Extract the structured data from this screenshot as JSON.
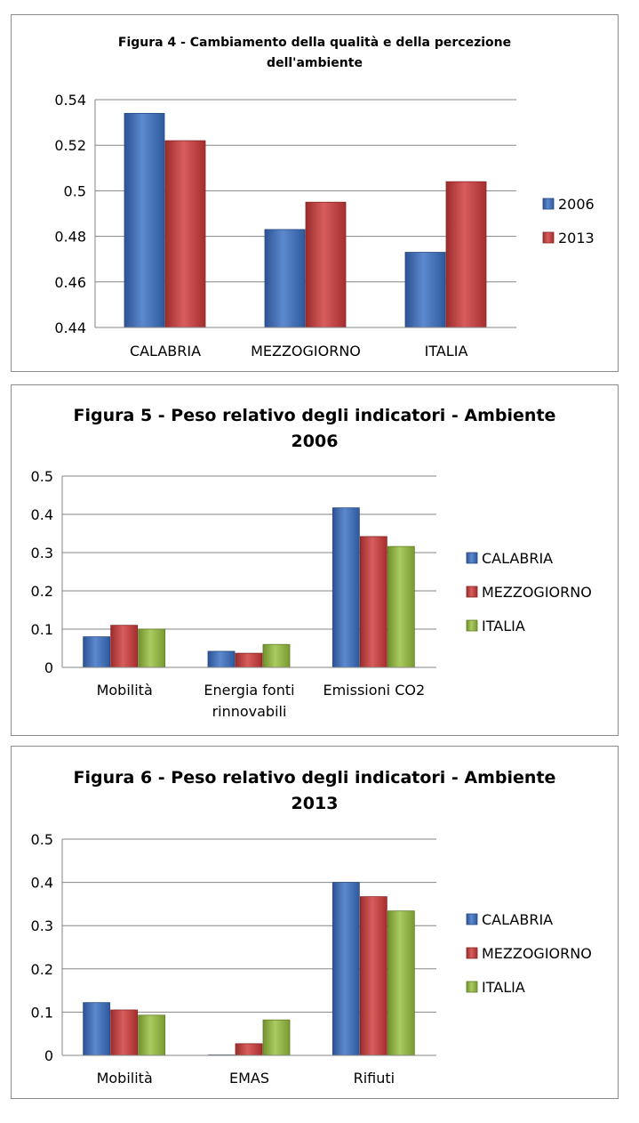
{
  "chart_data": [
    {
      "type": "bar",
      "title": "Figura 4 - Cambiamento della qualità e della percezione dell'ambiente",
      "title_lines": [
        "Figura 4 - Cambiamento della qualità e della percezione",
        "dell'ambiente"
      ],
      "categories": [
        "CALABRIA",
        "MEZZOGIORNO",
        "ITALIA"
      ],
      "series": [
        {
          "name": "2006",
          "values": [
            0.534,
            0.483,
            0.473
          ],
          "color": "#3a6fc4"
        },
        {
          "name": "2013",
          "values": [
            0.522,
            0.495,
            0.504
          ],
          "color": "#d03a3a"
        }
      ],
      "ylim": [
        0.44,
        0.54
      ],
      "yticks": [
        0.44,
        0.46,
        0.48,
        0.5,
        0.52,
        0.54
      ],
      "ytick_labels": [
        "0.44",
        "0.46",
        "0.48",
        "0.5",
        "0.52",
        "0.54"
      ],
      "grid": true,
      "legend": "right"
    },
    {
      "type": "bar",
      "title": "Figura 5 - Peso relativo degli indicatori - Ambiente 2006",
      "title_lines": [
        "Figura 5 - Peso relativo degli indicatori - Ambiente",
        "2006"
      ],
      "categories": [
        "Mobilità",
        "Energia fonti rinnovabili",
        "Emissioni CO2"
      ],
      "category_lines": [
        [
          "Mobilità"
        ],
        [
          "Energia fonti",
          "rinnovabili"
        ],
        [
          "Emissioni CO2"
        ]
      ],
      "series": [
        {
          "name": "CALABRIA",
          "values": [
            0.08,
            0.042,
            0.417
          ],
          "color": "#3a6fc4"
        },
        {
          "name": "MEZZOGIORNO",
          "values": [
            0.11,
            0.037,
            0.342
          ],
          "color": "#d03a3a"
        },
        {
          "name": "ITALIA",
          "values": [
            0.1,
            0.06,
            0.316
          ],
          "color": "#97c03d"
        }
      ],
      "ylim": [
        0,
        0.5
      ],
      "yticks": [
        0,
        0.1,
        0.2,
        0.3,
        0.4,
        0.5
      ],
      "ytick_labels": [
        "0",
        "0.1",
        "0.2",
        "0.3",
        "0.4",
        "0.5"
      ],
      "grid": true,
      "legend": "right"
    },
    {
      "type": "bar",
      "title": "Figura 6 - Peso relativo degli indicatori - Ambiente 2013",
      "title_lines": [
        "Figura 6 - Peso relativo degli indicatori - Ambiente",
        "2013"
      ],
      "categories": [
        "Mobilità",
        "EMAS",
        "Rifiuti"
      ],
      "category_lines": [
        [
          "Mobilità"
        ],
        [
          "EMAS"
        ],
        [
          "Rifiuti"
        ]
      ],
      "series": [
        {
          "name": "CALABRIA",
          "values": [
            0.122,
            0.001,
            0.4
          ],
          "color": "#3a6fc4"
        },
        {
          "name": "MEZZOGIORNO",
          "values": [
            0.105,
            0.027,
            0.367
          ],
          "color": "#d03a3a"
        },
        {
          "name": "ITALIA",
          "values": [
            0.093,
            0.082,
            0.334
          ],
          "color": "#97c03d"
        }
      ],
      "ylim": [
        0,
        0.5
      ],
      "yticks": [
        0,
        0.1,
        0.2,
        0.3,
        0.4,
        0.5
      ],
      "ytick_labels": [
        "0",
        "0.1",
        "0.2",
        "0.3",
        "0.4",
        "0.5"
      ],
      "grid": true,
      "legend": "right"
    }
  ]
}
